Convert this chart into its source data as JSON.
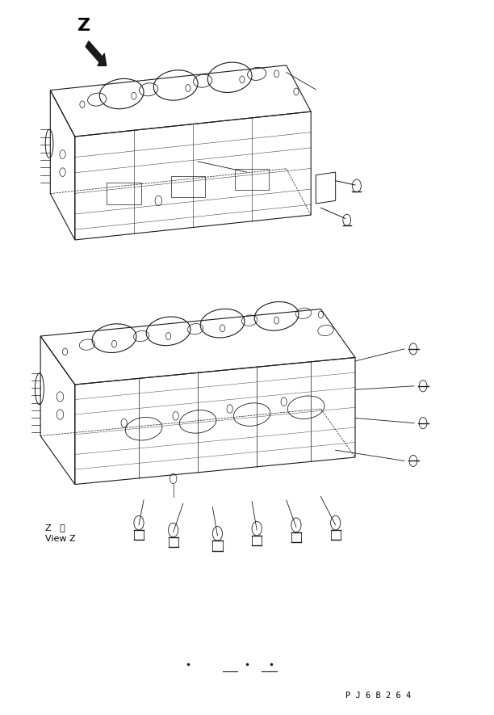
{
  "background_color": "#ffffff",
  "fig_width": 6.12,
  "fig_height": 8.85,
  "dpi": 100,
  "title_code": "P J 6 B 2 6 4",
  "z_label": "Z",
  "view_z_label1": "Z   視",
  "view_z_label2": "View Z",
  "arrow_color": "#1a1a1a",
  "line_color": "#1a1a1a",
  "text_color": "#000000"
}
